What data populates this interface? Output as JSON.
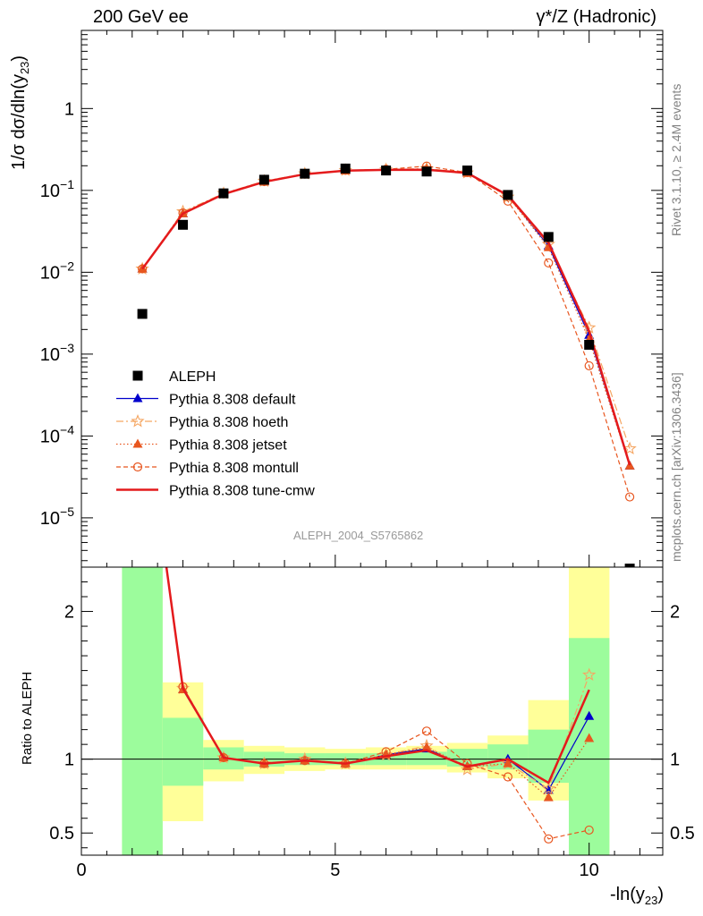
{
  "header": {
    "left": "200 GeV ee",
    "right": "γ*/Z (Hadronic)"
  },
  "side": {
    "rivet": "Rivet 3.1.10, ≥ 2.4M events",
    "mcplots": "mcplots.cern.ch [arXiv:1306.3436]"
  },
  "analysis_id": "ALEPH_2004_S5765862",
  "colors": {
    "aleph": "#000000",
    "default": "#0000cc",
    "hoeth": "#f5a662",
    "jetset": "#e8561f",
    "montull": "#e8561f",
    "cmw": "#e41a1c",
    "band_inner": "#9cfc9c",
    "band_outer": "#ffff99"
  },
  "chart_data": [
    {
      "type": "scatter",
      "ylabel": "1/σ  dσ/dln(y23)",
      "ylabel_parts": {
        "main": "1/σ  dσ/dln(y",
        "sub": "23",
        "close": ")"
      },
      "yscale": "log",
      "ylim": [
        2.5e-06,
        9
      ],
      "xlim": [
        0,
        11.45
      ],
      "y_ticks": [
        {
          "value": 1e-05,
          "base": "10",
          "exp": "−5"
        },
        {
          "value": 0.0001,
          "base": "10",
          "exp": "−4"
        },
        {
          "value": 0.001,
          "base": "10",
          "exp": "−3"
        },
        {
          "value": 0.01,
          "base": "10",
          "exp": "−2"
        },
        {
          "value": 0.1,
          "base": "10",
          "exp": "−1"
        },
        {
          "value": 1,
          "base": "1",
          "exp": ""
        }
      ],
      "legend": [
        {
          "key": "aleph",
          "label": "ALEPH"
        },
        {
          "key": "default",
          "label": "Pythia 8.308 default"
        },
        {
          "key": "hoeth",
          "label": "Pythia 8.308 hoeth"
        },
        {
          "key": "jetset",
          "label": "Pythia 8.308 jetset"
        },
        {
          "key": "montull",
          "label": "Pythia 8.308 montull"
        },
        {
          "key": "cmw",
          "label": "Pythia 8.308 tune-cmw"
        }
      ],
      "legend_position": "bottom-left",
      "data": {
        "name": "ALEPH",
        "x": [
          1.2,
          2.0,
          2.8,
          3.6,
          4.4,
          5.2,
          6.0,
          6.8,
          7.6,
          8.4,
          9.2,
          10.0,
          10.8
        ],
        "y": [
          0.0031,
          0.038,
          0.092,
          0.135,
          0.16,
          0.185,
          0.175,
          0.17,
          0.175,
          0.088,
          0.027,
          0.0013,
          2.4e-06
        ]
      },
      "x": [
        1.2,
        2.0,
        2.8,
        3.6,
        4.4,
        5.2,
        6.0,
        6.8,
        7.6,
        8.4,
        9.2,
        10.0,
        10.8
      ],
      "series": [
        {
          "key": "default",
          "name": "Pythia 8.308 default",
          "values": [
            0.011,
            0.052,
            0.09,
            0.128,
            0.158,
            0.175,
            0.178,
            0.18,
            0.163,
            0.086,
            0.021,
            0.0017,
            4.3e-05
          ]
        },
        {
          "key": "hoeth",
          "name": "Pythia 8.308 hoeth",
          "values": [
            0.011,
            0.055,
            0.092,
            0.13,
            0.16,
            0.176,
            0.18,
            0.185,
            0.164,
            0.083,
            0.022,
            0.0021,
            7e-05
          ]
        },
        {
          "key": "jetset",
          "name": "Pythia 8.308 jetset",
          "values": [
            0.011,
            0.052,
            0.09,
            0.127,
            0.157,
            0.174,
            0.178,
            0.182,
            0.162,
            0.085,
            0.02,
            0.0015,
            4.3e-05
          ]
        },
        {
          "key": "montull",
          "name": "Pythia 8.308 montull",
          "values": [
            0.011,
            0.053,
            0.091,
            0.128,
            0.158,
            0.176,
            0.181,
            0.198,
            0.165,
            0.074,
            0.013,
            0.00072,
            1.8e-05
          ]
        },
        {
          "key": "cmw",
          "name": "Pythia 8.308 tune-cmw",
          "values": [
            0.011,
            0.052,
            0.09,
            0.127,
            0.158,
            0.174,
            0.178,
            0.179,
            0.163,
            0.087,
            0.023,
            0.0019,
            4.4e-05
          ]
        }
      ]
    },
    {
      "type": "line",
      "ylabel": "Ratio to ALEPH",
      "xlabel": "-ln(y23)",
      "xlabel_parts": {
        "main": "-ln(y",
        "sub": "23",
        "close": ")"
      },
      "ylim": [
        0.35,
        2.3
      ],
      "xlim": [
        0,
        11.45
      ],
      "y_ticks": [
        0.5,
        1,
        2
      ],
      "x_ticks": [
        0,
        5,
        10
      ],
      "bands": {
        "x_low": [
          0.8,
          1.6,
          2.4,
          3.2,
          4.0,
          4.8,
          5.6,
          6.4,
          7.2,
          8.0,
          8.8,
          9.6,
          10.4
        ],
        "x_high": [
          1.6,
          2.4,
          3.2,
          4.0,
          4.8,
          5.6,
          6.4,
          7.2,
          8.0,
          8.8,
          9.6,
          10.4,
          11.2
        ],
        "inner": [
          [
            0.35,
            2.3
          ],
          [
            0.82,
            1.28
          ],
          [
            0.93,
            1.08
          ],
          [
            0.95,
            1.05
          ],
          [
            0.96,
            1.04
          ],
          [
            0.96,
            1.04
          ],
          [
            0.96,
            1.04
          ],
          [
            0.96,
            1.05
          ],
          [
            0.95,
            1.07
          ],
          [
            0.93,
            1.1
          ],
          [
            0.84,
            1.2
          ],
          [
            0.35,
            1.82
          ],
          null
        ],
        "outer": [
          [
            0.35,
            2.3
          ],
          [
            0.58,
            1.52
          ],
          [
            0.85,
            1.13
          ],
          [
            0.9,
            1.09
          ],
          [
            0.92,
            1.08
          ],
          [
            0.93,
            1.07
          ],
          [
            0.93,
            1.08
          ],
          [
            0.93,
            1.09
          ],
          [
            0.91,
            1.11
          ],
          [
            0.87,
            1.16
          ],
          [
            0.72,
            1.4
          ],
          [
            0.35,
            2.3
          ],
          null
        ]
      },
      "x": [
        1.2,
        2.0,
        2.8,
        3.6,
        4.4,
        5.2,
        6.0,
        6.8,
        7.6,
        8.4,
        9.2,
        10.0
      ],
      "series": [
        {
          "key": "default",
          "values": [
            3.5,
            1.47,
            1.01,
            0.97,
            0.99,
            0.97,
            1.03,
            1.07,
            0.95,
            1.0,
            0.79,
            1.29
          ]
        },
        {
          "key": "hoeth",
          "values": [
            3.5,
            1.48,
            1.01,
            0.97,
            1.0,
            0.97,
            1.03,
            1.09,
            0.93,
            0.97,
            0.8,
            1.57
          ]
        },
        {
          "key": "jetset",
          "values": [
            3.5,
            1.47,
            1.01,
            0.97,
            0.99,
            0.97,
            1.03,
            1.08,
            0.95,
            0.97,
            0.74,
            1.14
          ]
        },
        {
          "key": "montull",
          "values": [
            3.5,
            1.49,
            1.01,
            0.97,
            0.99,
            0.97,
            1.05,
            1.19,
            0.97,
            0.88,
            0.46,
            0.52
          ]
        },
        {
          "key": "cmw",
          "values": [
            3.5,
            1.48,
            1.01,
            0.97,
            0.99,
            0.97,
            1.02,
            1.06,
            0.95,
            1.0,
            0.84,
            1.47
          ]
        }
      ]
    }
  ]
}
